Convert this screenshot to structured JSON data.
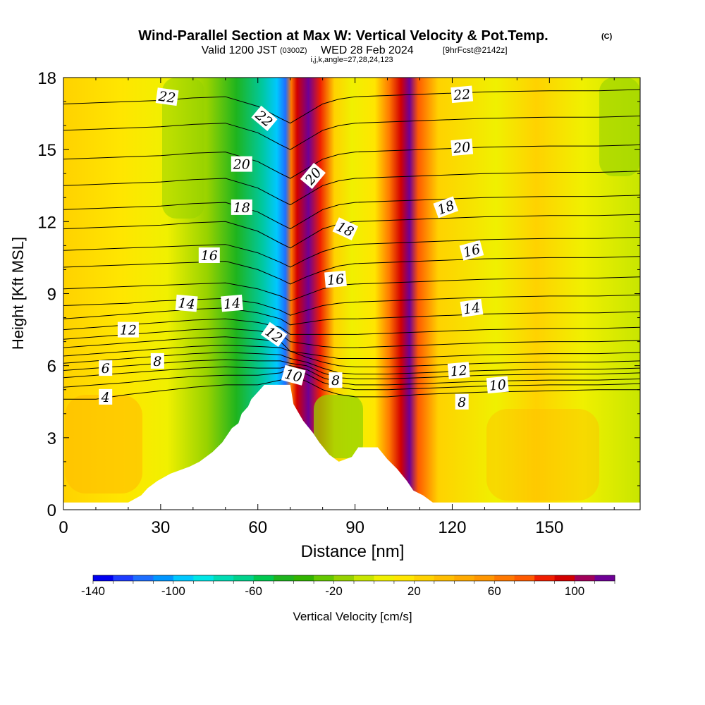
{
  "chart_data": {
    "type": "heatmap",
    "title": "Wind-Parallel Section at Max W: Vertical Velocity & Pot.Temp.",
    "title_mark": "(C)",
    "subtitle_valid": "Valid 1200 JST",
    "subtitle_z": "(0300Z)",
    "subtitle_date": "WED 28 Feb 2024",
    "subtitle_fcst": "[9hrFcst@2142z]",
    "subtitle_ijk": "i,j,k,angle=27,28,24,123",
    "xlabel": "Distance [nm]",
    "ylabel": "Height [Kft MSL]",
    "xlim": [
      0,
      178
    ],
    "ylim": [
      0,
      18
    ],
    "x_ticks": [
      "0",
      "30",
      "60",
      "90",
      "120",
      "150"
    ],
    "x_tick_values": [
      0,
      30,
      60,
      90,
      120,
      150
    ],
    "y_ticks": [
      "0",
      "3",
      "6",
      "9",
      "12",
      "15",
      "18"
    ],
    "y_tick_values": [
      0,
      3,
      6,
      9,
      12,
      15,
      18
    ],
    "colorbar_label": "Vertical Velocity [cm/s]",
    "colorbar_ticks": [
      "-140",
      "-100",
      "-60",
      "-20",
      "20",
      "60",
      "100"
    ],
    "colorbar_tick_values": [
      -140,
      -100,
      -60,
      -20,
      20,
      60,
      100
    ],
    "colorbar_range": [
      -140,
      120
    ],
    "colorbar_step": 10,
    "colorbar_colors": [
      "#0000f0",
      "#1e3cff",
      "#1e6eff",
      "#0096ff",
      "#00c8ff",
      "#00e6e6",
      "#00dcb4",
      "#00d28c",
      "#00c850",
      "#1eb41e",
      "#32b400",
      "#64c800",
      "#96d200",
      "#c8e600",
      "#f0f000",
      "#ffe600",
      "#ffd200",
      "#ffbe00",
      "#ffaa00",
      "#ff9600",
      "#ff7800",
      "#ff5a00",
      "#f01e00",
      "#d20000",
      "#a0005a",
      "#6e0096"
    ],
    "terrain": [
      [
        0,
        0.3
      ],
      [
        20,
        0.3
      ],
      [
        24,
        0.6
      ],
      [
        26,
        0.9
      ],
      [
        29,
        1.2
      ],
      [
        33,
        1.5
      ],
      [
        39,
        1.8
      ],
      [
        42,
        2.0
      ],
      [
        46,
        2.4
      ],
      [
        49,
        2.8
      ],
      [
        52,
        3.4
      ],
      [
        54,
        3.6
      ],
      [
        55,
        4.0
      ],
      [
        57,
        4.3
      ],
      [
        58,
        4.6
      ],
      [
        60,
        4.9
      ],
      [
        62,
        5.2
      ],
      [
        70,
        5.2
      ],
      [
        71,
        4.4
      ],
      [
        74,
        3.7
      ],
      [
        77,
        3.2
      ],
      [
        79,
        2.8
      ],
      [
        82,
        2.3
      ],
      [
        85,
        2.0
      ],
      [
        87,
        2.1
      ],
      [
        89,
        2.2
      ],
      [
        91,
        2.6
      ],
      [
        97,
        2.6
      ],
      [
        100,
        2.1
      ],
      [
        103,
        1.7
      ],
      [
        106,
        1.2
      ],
      [
        108,
        0.8
      ],
      [
        111,
        0.6
      ],
      [
        114,
        0.3
      ],
      [
        178,
        0.3
      ]
    ],
    "theta_contours": [
      {
        "level": 4,
        "y": [
          4.6,
          4.6,
          4.8,
          4.95,
          5.1,
          5.2,
          5.2,
          5.4,
          5.6,
          5.35,
          5.0,
          4.8,
          4.7,
          4.7,
          4.8,
          4.85,
          4.9,
          4.95,
          5.0,
          5.0
        ]
      },
      {
        "level": 5,
        "y": [
          5.1,
          5.2,
          5.3,
          5.45,
          5.55,
          5.6,
          5.6,
          5.7,
          5.9,
          5.65,
          5.3,
          5.1,
          5.0,
          5.0,
          5.05,
          5.1,
          5.15,
          5.2,
          5.2,
          5.25
        ]
      },
      {
        "level": 6,
        "y": [
          5.5,
          5.6,
          5.7,
          5.8,
          5.9,
          5.95,
          5.9,
          5.9,
          6.0,
          5.85,
          5.5,
          5.3,
          5.2,
          5.2,
          5.25,
          5.3,
          5.35,
          5.4,
          5.4,
          5.45
        ]
      },
      {
        "level": 7,
        "y": [
          5.8,
          5.9,
          6.0,
          6.1,
          6.2,
          6.25,
          6.2,
          6.2,
          6.1,
          6.0,
          5.7,
          5.5,
          5.45,
          5.45,
          5.5,
          5.55,
          5.6,
          5.65,
          5.65,
          5.7
        ]
      },
      {
        "level": 8,
        "y": [
          6.1,
          6.2,
          6.3,
          6.4,
          6.5,
          6.55,
          6.5,
          6.45,
          6.3,
          6.15,
          5.9,
          5.7,
          5.65,
          5.65,
          5.7,
          5.75,
          5.8,
          5.85,
          5.85,
          5.9
        ]
      },
      {
        "level": 9,
        "y": [
          6.4,
          6.5,
          6.6,
          6.7,
          6.8,
          6.85,
          6.8,
          6.75,
          6.6,
          6.35,
          6.15,
          6.0,
          5.95,
          5.95,
          6.0,
          6.05,
          6.1,
          6.15,
          6.15,
          6.2
        ]
      },
      {
        "level": 10,
        "y": [
          6.75,
          6.85,
          6.95,
          7.05,
          7.15,
          7.2,
          7.1,
          7.0,
          6.6,
          6.5,
          6.4,
          6.3,
          6.3,
          6.3,
          6.35,
          6.4,
          6.45,
          6.5,
          6.5,
          6.55
        ]
      },
      {
        "level": 11,
        "y": [
          7.1,
          7.2,
          7.3,
          7.4,
          7.5,
          7.55,
          7.45,
          7.3,
          7.0,
          6.9,
          6.8,
          6.75,
          6.75,
          6.8,
          6.85,
          6.9,
          6.95,
          7.0,
          7.0,
          7.05
        ]
      },
      {
        "level": 12,
        "y": [
          7.5,
          7.6,
          7.7,
          7.8,
          7.9,
          7.95,
          7.8,
          7.6,
          7.3,
          7.3,
          7.3,
          7.3,
          7.3,
          7.35,
          7.4,
          7.45,
          7.5,
          7.55,
          7.55,
          7.6
        ]
      },
      {
        "level": 13,
        "y": [
          7.95,
          8.05,
          8.15,
          8.25,
          8.35,
          8.4,
          8.2,
          7.95,
          7.7,
          7.8,
          7.9,
          7.95,
          7.95,
          8.0,
          8.05,
          8.1,
          8.15,
          8.2,
          8.2,
          8.25
        ]
      },
      {
        "level": 14,
        "y": [
          8.5,
          8.55,
          8.6,
          8.7,
          8.75,
          8.8,
          8.6,
          8.3,
          8.1,
          8.3,
          8.5,
          8.6,
          8.65,
          8.7,
          8.75,
          8.8,
          8.85,
          8.9,
          8.9,
          8.95
        ]
      },
      {
        "level": 15,
        "y": [
          9.2,
          9.25,
          9.3,
          9.35,
          9.4,
          9.45,
          9.2,
          8.9,
          8.7,
          8.95,
          9.2,
          9.35,
          9.4,
          9.45,
          9.5,
          9.55,
          9.6,
          9.65,
          9.65,
          9.7
        ]
      },
      {
        "level": 16,
        "y": [
          10.1,
          10.15,
          10.2,
          10.25,
          10.3,
          10.35,
          10.0,
          9.6,
          9.4,
          9.7,
          9.95,
          10.15,
          10.25,
          10.3,
          10.35,
          10.4,
          10.45,
          10.5,
          10.5,
          10.55
        ]
      },
      {
        "level": 17,
        "y": [
          10.8,
          10.85,
          10.9,
          10.95,
          11.0,
          11.05,
          10.7,
          10.3,
          10.1,
          10.45,
          10.75,
          10.95,
          11.05,
          11.1,
          11.15,
          11.2,
          11.25,
          11.3,
          11.3,
          11.35
        ]
      },
      {
        "level": 18,
        "y": [
          11.7,
          11.75,
          11.8,
          11.85,
          11.95,
          12.0,
          11.6,
          11.1,
          10.9,
          11.3,
          11.7,
          11.9,
          12.0,
          12.05,
          12.1,
          12.15,
          12.2,
          12.25,
          12.25,
          12.3
        ]
      },
      {
        "level": 19,
        "y": [
          12.5,
          12.55,
          12.6,
          12.65,
          12.75,
          12.8,
          12.4,
          11.9,
          11.7,
          12.1,
          12.5,
          12.7,
          12.8,
          12.85,
          12.9,
          12.95,
          13.0,
          13.05,
          13.05,
          13.1
        ]
      },
      {
        "level": 20,
        "y": [
          13.5,
          13.55,
          13.6,
          13.65,
          13.75,
          13.8,
          13.4,
          12.9,
          12.7,
          13.1,
          13.5,
          13.7,
          13.8,
          13.85,
          13.9,
          13.95,
          14.0,
          14.05,
          14.05,
          14.1
        ]
      },
      {
        "level": 21,
        "y": [
          14.6,
          14.65,
          14.7,
          14.75,
          14.85,
          14.9,
          14.5,
          14.0,
          13.8,
          14.2,
          14.6,
          14.8,
          14.9,
          14.95,
          15.0,
          15.05,
          15.1,
          15.15,
          15.15,
          15.2
        ]
      },
      {
        "level": 22,
        "y": [
          15.8,
          15.85,
          15.9,
          15.95,
          16.05,
          16.1,
          15.7,
          15.2,
          15.0,
          15.4,
          15.8,
          16.0,
          16.1,
          16.15,
          16.2,
          16.25,
          16.3,
          16.35,
          16.35,
          16.4
        ]
      },
      {
        "level": 23,
        "y": [
          16.9,
          16.95,
          17.0,
          17.05,
          17.15,
          17.2,
          16.8,
          16.3,
          16.1,
          16.5,
          16.9,
          17.1,
          17.2,
          17.25,
          17.3,
          17.35,
          17.4,
          17.45,
          17.45,
          17.5
        ]
      }
    ],
    "theta_contour_x": [
      0,
      10,
      20,
      30,
      40,
      50,
      60,
      67,
      70,
      75,
      80,
      85,
      90,
      100,
      110,
      120,
      130,
      150,
      165,
      178
    ],
    "contour_labels": [
      {
        "text": "22",
        "x": 32,
        "y": 17.2,
        "rot": 8
      },
      {
        "text": "22",
        "x": 62,
        "y": 16.3,
        "rot": 40
      },
      {
        "text": "22",
        "x": 123,
        "y": 17.3,
        "rot": -5
      },
      {
        "text": "20",
        "x": 55,
        "y": 14.4,
        "rot": 0
      },
      {
        "text": "20",
        "x": 77,
        "y": 13.9,
        "rot": -50
      },
      {
        "text": "20",
        "x": 123,
        "y": 15.1,
        "rot": -5
      },
      {
        "text": "18",
        "x": 55,
        "y": 12.6,
        "rot": 0
      },
      {
        "text": "18",
        "x": 87,
        "y": 11.7,
        "rot": 25
      },
      {
        "text": "18",
        "x": 118,
        "y": 12.6,
        "rot": -20
      },
      {
        "text": "16",
        "x": 45,
        "y": 10.6,
        "rot": 0
      },
      {
        "text": "16",
        "x": 84,
        "y": 9.6,
        "rot": -5
      },
      {
        "text": "16",
        "x": 126,
        "y": 10.8,
        "rot": -15
      },
      {
        "text": "14",
        "x": 38,
        "y": 8.6,
        "rot": 5
      },
      {
        "text": "14",
        "x": 52,
        "y": 8.6,
        "rot": -5
      },
      {
        "text": "14",
        "x": 126,
        "y": 8.4,
        "rot": -8
      },
      {
        "text": "12",
        "x": 20,
        "y": 7.5,
        "rot": 0
      },
      {
        "text": "12",
        "x": 65,
        "y": 7.3,
        "rot": 35
      },
      {
        "text": "12",
        "x": 122,
        "y": 5.8,
        "rot": -5
      },
      {
        "text": "10",
        "x": 71,
        "y": 5.6,
        "rot": 15
      },
      {
        "text": "10",
        "x": 134,
        "y": 5.2,
        "rot": -5
      },
      {
        "text": "8",
        "x": 29,
        "y": 6.2,
        "rot": 0
      },
      {
        "text": "8",
        "x": 84,
        "y": 5.4,
        "rot": 0
      },
      {
        "text": "8",
        "x": 123,
        "y": 4.5,
        "rot": 0
      },
      {
        "text": "6",
        "x": 13,
        "y": 5.9,
        "rot": 0
      },
      {
        "text": "4",
        "x": 13,
        "y": 4.7,
        "rot": 0
      }
    ]
  }
}
